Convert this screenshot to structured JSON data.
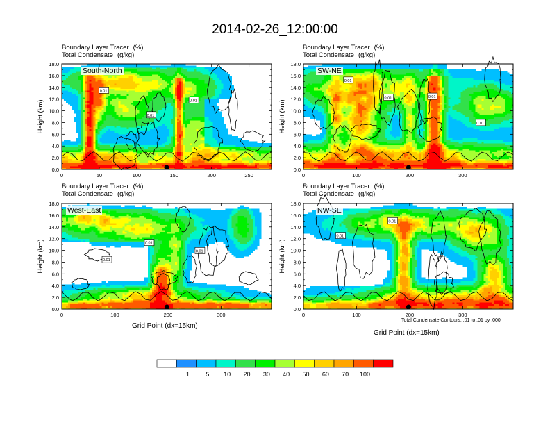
{
  "title": "2014-02-26_12:00:00",
  "field_label_1": "Boundary Layer Tracer",
  "field_unit_1": "(%)",
  "field_label_2": "Total Condensate",
  "field_unit_2": "(g/kg)",
  "footnote": "Total Condensate Contours: .01 to .01 by .000",
  "colors": {
    "levels": [
      0,
      1,
      5,
      10,
      20,
      30,
      40,
      50,
      60,
      70,
      100
    ],
    "bins": [
      "#ffffff",
      "#1e90ff",
      "#00bfff",
      "#00f5c8",
      "#32e04a",
      "#00f000",
      "#a6ff33",
      "#ffff00",
      "#ffd000",
      "#ffa500",
      "#ff5a00",
      "#ff0000"
    ]
  },
  "chart_data": [
    {
      "type": "heatmap",
      "panel": "South-North",
      "ylabel": "Height (km)",
      "xlabel": "",
      "xlim": [
        0,
        280
      ],
      "ylim": [
        0,
        18
      ],
      "xticks": [
        0,
        50,
        100,
        150,
        200,
        250
      ],
      "yticks": [
        "0.0",
        "2.0",
        "4.0",
        "6.0",
        "8.0",
        "10.0",
        "12.0",
        "14.0",
        "16.0",
        "18.0"
      ],
      "marker_x": 140,
      "contour_labels": [
        "0.01",
        "0.01",
        "0.01"
      ]
    },
    {
      "type": "heatmap",
      "panel": "SW-NE",
      "ylabel": "Height (km)",
      "xlabel": "",
      "xlim": [
        0,
        395
      ],
      "ylim": [
        0,
        18
      ],
      "xticks": [
        0,
        100,
        200,
        300
      ],
      "yticks": [
        "0.0",
        "2.0",
        "4.0",
        "6.0",
        "8.0",
        "10.0",
        "12.0",
        "14.0",
        "16.0",
        "18.0"
      ],
      "marker_x": 198,
      "contour_labels": [
        "0.01",
        "0.01",
        "0.01",
        "0.01"
      ]
    },
    {
      "type": "heatmap",
      "panel": "West-East",
      "ylabel": "Height (km)",
      "xlabel": "Grid Point (dx=15km)",
      "xlim": [
        0,
        395
      ],
      "ylim": [
        0,
        18
      ],
      "xticks": [
        0,
        100,
        200,
        300
      ],
      "yticks": [
        "0.0",
        "2.0",
        "4.0",
        "6.0",
        "8.0",
        "10.0",
        "12.0",
        "14.0",
        "16.0",
        "18.0"
      ],
      "marker_x": 198,
      "contour_labels": [
        "0.01",
        "0.01",
        "0.01"
      ]
    },
    {
      "type": "heatmap",
      "panel": "NW-SE",
      "ylabel": "Height (km)",
      "xlabel": "Grid Point (dx=15km)",
      "xlim": [
        0,
        395
      ],
      "ylim": [
        0,
        18
      ],
      "xticks": [
        0,
        100,
        200,
        300
      ],
      "yticks": [
        "0.0",
        "2.0",
        "4.0",
        "6.0",
        "8.0",
        "10.0",
        "12.0",
        "14.0",
        "16.0",
        "18.0"
      ],
      "marker_x": 198,
      "contour_labels": [
        "0.01",
        "0.01"
      ]
    }
  ]
}
